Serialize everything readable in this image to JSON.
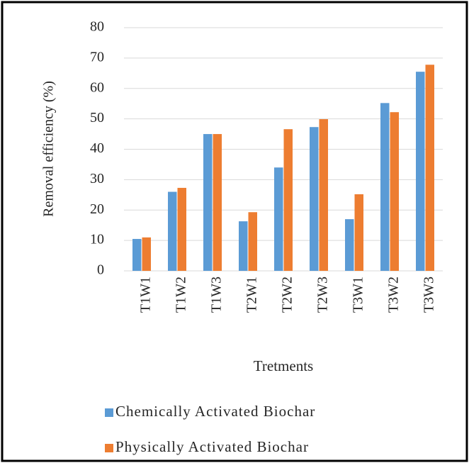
{
  "chart_data": {
    "type": "bar",
    "categories": [
      "T1W1",
      "T1W2",
      "T1W3",
      "T2W1",
      "T2W2",
      "T2W3",
      "T3W1",
      "T3W2",
      "T3W3"
    ],
    "series": [
      {
        "name": "Chemically Activated Biochar",
        "color": "#5b9bd5",
        "values": [
          10.5,
          26,
          45,
          16.3,
          34,
          47.3,
          17,
          55.2,
          65.5
        ]
      },
      {
        "name": "Physically Activated Biochar",
        "color": "#ed7d31",
        "values": [
          11,
          27.3,
          45,
          19.3,
          46.6,
          49.9,
          25.2,
          52.2,
          67.8
        ]
      }
    ],
    "x_label": "Tretments",
    "y_label": "Removal efficiency (%)",
    "ylim": [
      0,
      80
    ],
    "yticks": [
      0,
      10,
      20,
      30,
      40,
      50,
      60,
      70,
      80
    ],
    "grid": true,
    "legend": "bottom"
  }
}
